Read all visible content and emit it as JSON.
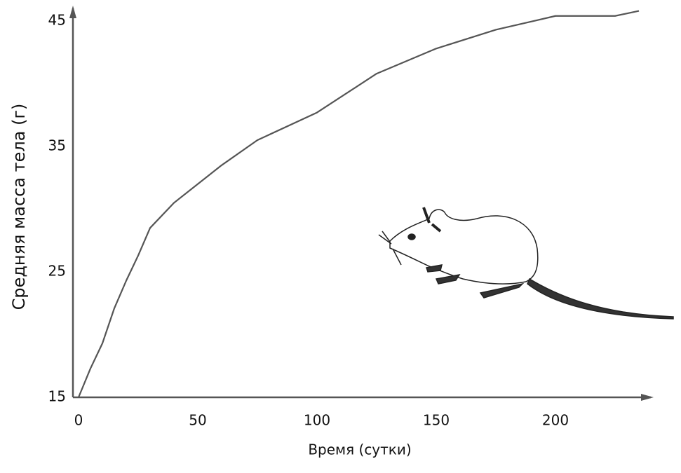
{
  "chart_data": {
    "type": "line",
    "x_label": "Время (сутки)",
    "y_label": "Средняя масса тела (г)",
    "x": [
      0,
      5,
      10,
      15,
      20,
      25,
      30,
      40,
      50,
      60,
      75,
      100,
      125,
      150,
      175,
      200,
      225,
      235
    ],
    "series": [
      {
        "color": "#555555",
        "values": [
          15,
          17.3,
          19.3,
          22.1,
          24.3,
          26.3,
          28.5,
          30.5,
          32,
          33.5,
          35.5,
          37.7,
          40.8,
          42.8,
          44.3,
          45.4,
          45.4,
          45.8
        ]
      }
    ],
    "xlim": [
      0,
      240
    ],
    "ylim": [
      15,
      46
    ],
    "xticks": [
      0,
      50,
      100,
      150,
      200
    ],
    "yticks": [
      15,
      25,
      35,
      45
    ],
    "grid": false
  }
}
